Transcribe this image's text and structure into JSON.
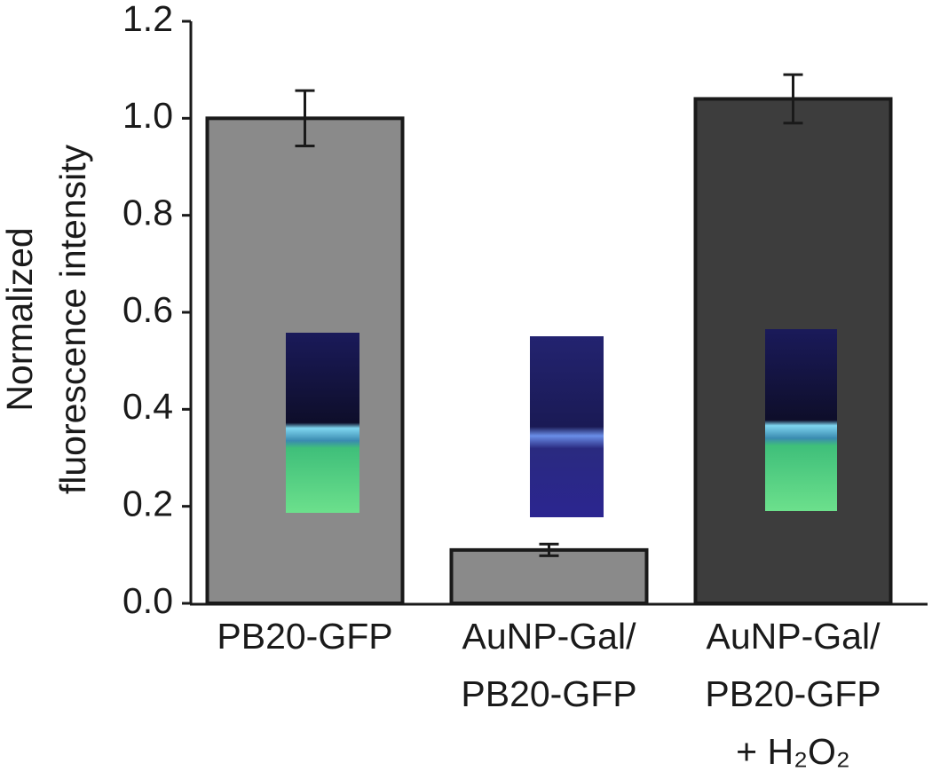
{
  "chart_data": {
    "type": "bar",
    "y_label": [
      "Normalized",
      "fluorescence intensity"
    ],
    "categories": [
      [
        "PB20-GFP"
      ],
      [
        "AuNP-Gal/",
        "PB20-GFP"
      ],
      [
        "AuNP-Gal/",
        "PB20-GFP",
        "+ H₂O₂"
      ]
    ],
    "values": [
      1.0,
      0.11,
      1.04
    ],
    "errors": [
      0.057,
      0.012,
      0.05
    ],
    "colors": [
      "#8a8a8a",
      "#8a8a8a",
      "#3d3d3d"
    ],
    "ylim": [
      0,
      1.2
    ],
    "yticks": [
      {
        "value": 0,
        "label": "0.0"
      },
      0.2,
      0.4,
      0.6,
      0.8,
      {
        "value": 1,
        "label": "1.0"
      },
      1.2
    ],
    "grid": false
  }
}
